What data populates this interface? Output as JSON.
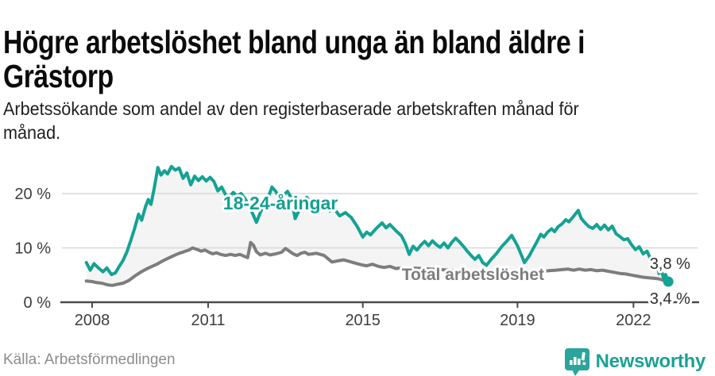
{
  "header": {
    "title_lines": [
      "Högre arbetslöshet bland unga än bland äldre i",
      "Grästorp"
    ],
    "subtitle_lines": [
      "Arbetssökande som andel av den registerbaserade arbetskraften månad för",
      "månad."
    ]
  },
  "footer": {
    "source": "Källa: Arbetsförmedlingen",
    "brand": "Newsworthy",
    "brand_color": "#1ba195"
  },
  "colors": {
    "youth_line": "#14a294",
    "total_line": "#7d7d7d",
    "fill_between": "#f4f4f4",
    "gridline": "#d8d8d8",
    "axis": "#4a4a4a",
    "tick_text": "#3d3d3d",
    "value_text": "#2e2e2e"
  },
  "chart_data": {
    "type": "line",
    "title": "Högre arbetslöshet bland unga än bland äldre i Grästorp",
    "subtitle": "Arbetssökande som andel av den registerbaserade arbetskraften månad för månad.",
    "source": "Källa: Arbetsförmedlingen",
    "x_axis": {
      "ticks": [
        2008,
        2011,
        2015,
        2019,
        2022
      ],
      "labels": [
        "2008",
        "2011",
        "2015",
        "2019",
        "2022"
      ],
      "range": [
        2007.7,
        2023.3
      ]
    },
    "y_axis": {
      "ticks": [
        0,
        10,
        20
      ],
      "labels": [
        "0 %",
        "10 %",
        "20 %"
      ],
      "range": [
        0,
        26
      ],
      "unit": "percent"
    },
    "grid": true,
    "legend_position": "inline-labels",
    "annotations": [
      {
        "text": "18-24-åringar",
        "year": 2012.87,
        "value": 17.1,
        "color": "#12a093",
        "size": 23,
        "weight": 700,
        "anchor": "middle"
      },
      {
        "text": "Total arbetslöshet",
        "year": 2017.85,
        "value": 4.1,
        "color": "#7d7d7d",
        "size": 21,
        "weight": 700,
        "anchor": "middle"
      },
      {
        "text": "3,8 %",
        "year": 2022.42,
        "value": 6.1,
        "color": "#2e2e2e",
        "size": 20,
        "weight": 400,
        "anchor": "start"
      },
      {
        "text": "3,4 %",
        "year": 2022.42,
        "value": -0.3,
        "color": "#2e2e2e",
        "size": 20,
        "weight": 400,
        "anchor": "start"
      }
    ],
    "series": [
      {
        "name": "18-24-åringar",
        "end_value_label": "3,8 %",
        "end_dot": true,
        "points": [
          [
            2007.85,
            7.3
          ],
          [
            2007.95,
            5.9
          ],
          [
            2008.05,
            7.1
          ],
          [
            2008.15,
            6.4
          ],
          [
            2008.28,
            5.6
          ],
          [
            2008.38,
            6.3
          ],
          [
            2008.5,
            5.1
          ],
          [
            2008.6,
            5.4
          ],
          [
            2008.7,
            6.6
          ],
          [
            2008.8,
            7.7
          ],
          [
            2008.9,
            9.3
          ],
          [
            2009.0,
            11.4
          ],
          [
            2009.1,
            13.6
          ],
          [
            2009.2,
            16.2
          ],
          [
            2009.28,
            15.1
          ],
          [
            2009.38,
            17.6
          ],
          [
            2009.45,
            18.9
          ],
          [
            2009.52,
            18.0
          ],
          [
            2009.6,
            20.8
          ],
          [
            2009.7,
            24.8
          ],
          [
            2009.78,
            23.4
          ],
          [
            2009.87,
            24.2
          ],
          [
            2009.95,
            23.6
          ],
          [
            2010.05,
            25.0
          ],
          [
            2010.15,
            24.3
          ],
          [
            2010.25,
            24.7
          ],
          [
            2010.35,
            22.8
          ],
          [
            2010.45,
            23.8
          ],
          [
            2010.55,
            21.6
          ],
          [
            2010.65,
            23.2
          ],
          [
            2010.75,
            22.4
          ],
          [
            2010.85,
            23.1
          ],
          [
            2010.95,
            22.3
          ],
          [
            2011.05,
            23.0
          ],
          [
            2011.15,
            22.2
          ],
          [
            2011.25,
            20.5
          ],
          [
            2011.35,
            21.2
          ],
          [
            2011.45,
            19.8
          ],
          [
            2011.55,
            19.4
          ],
          [
            2011.65,
            20.2
          ],
          [
            2011.75,
            19.5
          ],
          [
            2011.85,
            20.0
          ],
          [
            2011.95,
            19.1
          ],
          [
            2012.05,
            17.9
          ],
          [
            2012.15,
            16.3
          ],
          [
            2012.25,
            14.7
          ],
          [
            2012.35,
            16.5
          ],
          [
            2012.45,
            18.3
          ],
          [
            2012.55,
            19.2
          ],
          [
            2012.65,
            21.2
          ],
          [
            2012.75,
            20.4
          ],
          [
            2012.85,
            19.1
          ],
          [
            2012.95,
            19.7
          ],
          [
            2013.05,
            20.4
          ],
          [
            2013.15,
            19.2
          ],
          [
            2013.25,
            15.4
          ],
          [
            2013.35,
            16.9
          ],
          [
            2013.45,
            18.6
          ],
          [
            2013.55,
            19.3
          ],
          [
            2013.65,
            18.4
          ],
          [
            2013.75,
            17.7
          ],
          [
            2013.85,
            18.3
          ],
          [
            2013.95,
            17.3
          ],
          [
            2014.05,
            17.9
          ],
          [
            2014.15,
            16.8
          ],
          [
            2014.25,
            17.3
          ],
          [
            2014.4,
            15.9
          ],
          [
            2014.55,
            16.5
          ],
          [
            2014.7,
            15.6
          ],
          [
            2014.85,
            14.0
          ],
          [
            2015.0,
            12.0
          ],
          [
            2015.1,
            12.9
          ],
          [
            2015.2,
            12.4
          ],
          [
            2015.35,
            13.6
          ],
          [
            2015.5,
            14.6
          ],
          [
            2015.6,
            13.7
          ],
          [
            2015.7,
            14.3
          ],
          [
            2015.85,
            13.2
          ],
          [
            2016.0,
            12.2
          ],
          [
            2016.1,
            10.8
          ],
          [
            2016.2,
            8.8
          ],
          [
            2016.3,
            10.3
          ],
          [
            2016.4,
            9.6
          ],
          [
            2016.5,
            10.5
          ],
          [
            2016.6,
            11.2
          ],
          [
            2016.7,
            10.4
          ],
          [
            2016.8,
            11.3
          ],
          [
            2016.9,
            10.6
          ],
          [
            2017.0,
            10.1
          ],
          [
            2017.1,
            10.9
          ],
          [
            2017.2,
            10.0
          ],
          [
            2017.3,
            11.0
          ],
          [
            2017.4,
            11.8
          ],
          [
            2017.5,
            11.1
          ],
          [
            2017.6,
            10.3
          ],
          [
            2017.7,
            9.4
          ],
          [
            2017.8,
            8.6
          ],
          [
            2017.9,
            7.9
          ],
          [
            2018.0,
            8.6
          ],
          [
            2018.1,
            7.3
          ],
          [
            2018.2,
            6.8
          ],
          [
            2018.32,
            7.9
          ],
          [
            2018.45,
            8.9
          ],
          [
            2018.6,
            10.3
          ],
          [
            2018.72,
            11.2
          ],
          [
            2018.85,
            12.3
          ],
          [
            2019.0,
            10.4
          ],
          [
            2019.1,
            8.7
          ],
          [
            2019.18,
            7.3
          ],
          [
            2019.3,
            8.5
          ],
          [
            2019.4,
            9.8
          ],
          [
            2019.5,
            11.1
          ],
          [
            2019.6,
            12.5
          ],
          [
            2019.68,
            12.0
          ],
          [
            2019.78,
            12.9
          ],
          [
            2019.88,
            13.5
          ],
          [
            2019.96,
            13.0
          ],
          [
            2020.05,
            13.9
          ],
          [
            2020.15,
            14.4
          ],
          [
            2020.25,
            15.2
          ],
          [
            2020.33,
            14.8
          ],
          [
            2020.45,
            15.8
          ],
          [
            2020.57,
            16.9
          ],
          [
            2020.65,
            15.4
          ],
          [
            2020.75,
            14.6
          ],
          [
            2020.85,
            13.9
          ],
          [
            2020.95,
            13.6
          ],
          [
            2021.05,
            14.3
          ],
          [
            2021.15,
            13.4
          ],
          [
            2021.25,
            14.2
          ],
          [
            2021.35,
            13.3
          ],
          [
            2021.45,
            14.0
          ],
          [
            2021.55,
            12.6
          ],
          [
            2021.65,
            12.1
          ],
          [
            2021.75,
            11.5
          ],
          [
            2021.85,
            11.7
          ],
          [
            2021.95,
            10.6
          ],
          [
            2022.05,
            9.7
          ],
          [
            2022.15,
            10.2
          ],
          [
            2022.25,
            8.9
          ],
          [
            2022.35,
            9.4
          ],
          [
            2022.42,
            8.3
          ],
          [
            2022.48,
            7.5
          ],
          [
            2022.54,
            6.3
          ],
          [
            2022.6,
            7.1
          ],
          [
            2022.66,
            5.3
          ],
          [
            2022.72,
            6.0
          ],
          [
            2022.78,
            4.4
          ],
          [
            2022.83,
            5.1
          ],
          [
            2022.87,
            4.3
          ],
          [
            2022.9,
            3.8
          ]
        ]
      },
      {
        "name": "Total arbetslöshet",
        "end_value_label": "3,4 %",
        "end_dot": false,
        "points": [
          [
            2007.85,
            3.9
          ],
          [
            2008.0,
            3.8
          ],
          [
            2008.12,
            3.6
          ],
          [
            2008.25,
            3.5
          ],
          [
            2008.4,
            3.2
          ],
          [
            2008.52,
            3.1
          ],
          [
            2008.65,
            3.3
          ],
          [
            2008.8,
            3.5
          ],
          [
            2008.95,
            4.0
          ],
          [
            2009.1,
            4.8
          ],
          [
            2009.25,
            5.5
          ],
          [
            2009.4,
            6.1
          ],
          [
            2009.55,
            6.6
          ],
          [
            2009.7,
            7.1
          ],
          [
            2009.85,
            7.7
          ],
          [
            2010.0,
            8.2
          ],
          [
            2010.12,
            8.6
          ],
          [
            2010.25,
            9.0
          ],
          [
            2010.38,
            9.3
          ],
          [
            2010.5,
            9.6
          ],
          [
            2010.6,
            10.0
          ],
          [
            2010.72,
            9.7
          ],
          [
            2010.82,
            9.4
          ],
          [
            2010.92,
            9.6
          ],
          [
            2011.02,
            9.2
          ],
          [
            2011.12,
            8.9
          ],
          [
            2011.22,
            9.1
          ],
          [
            2011.32,
            8.8
          ],
          [
            2011.45,
            8.6
          ],
          [
            2011.58,
            8.8
          ],
          [
            2011.7,
            8.6
          ],
          [
            2011.82,
            8.8
          ],
          [
            2011.92,
            8.5
          ],
          [
            2012.02,
            8.2
          ],
          [
            2012.1,
            11.0
          ],
          [
            2012.17,
            10.5
          ],
          [
            2012.25,
            9.3
          ],
          [
            2012.35,
            8.7
          ],
          [
            2012.48,
            9.0
          ],
          [
            2012.6,
            8.7
          ],
          [
            2012.75,
            8.9
          ],
          [
            2012.9,
            9.2
          ],
          [
            2013.0,
            9.9
          ],
          [
            2013.1,
            9.4
          ],
          [
            2013.2,
            8.9
          ],
          [
            2013.3,
            8.6
          ],
          [
            2013.4,
            9.0
          ],
          [
            2013.5,
            9.2
          ],
          [
            2013.6,
            8.8
          ],
          [
            2013.7,
            8.9
          ],
          [
            2013.8,
            9.0
          ],
          [
            2013.9,
            8.8
          ],
          [
            2014.0,
            8.6
          ],
          [
            2014.1,
            8.0
          ],
          [
            2014.2,
            7.4
          ],
          [
            2014.35,
            7.6
          ],
          [
            2014.5,
            7.8
          ],
          [
            2014.65,
            7.5
          ],
          [
            2014.8,
            7.2
          ],
          [
            2014.95,
            6.9
          ],
          [
            2015.1,
            6.7
          ],
          [
            2015.25,
            7.0
          ],
          [
            2015.4,
            6.6
          ],
          [
            2015.55,
            6.4
          ],
          [
            2015.7,
            6.6
          ],
          [
            2015.85,
            6.2
          ],
          [
            2016.0,
            6.3
          ],
          [
            2016.25,
            6.3
          ],
          [
            2016.5,
            6.2
          ],
          [
            2016.75,
            6.1
          ],
          [
            2017.0,
            6.0
          ],
          [
            2017.25,
            5.9
          ],
          [
            2017.5,
            5.7
          ],
          [
            2017.75,
            5.5
          ],
          [
            2018.0,
            5.4
          ],
          [
            2018.25,
            5.3
          ],
          [
            2018.5,
            5.2
          ],
          [
            2018.75,
            5.2
          ],
          [
            2019.0,
            5.1
          ],
          [
            2019.2,
            5.2
          ],
          [
            2019.4,
            5.4
          ],
          [
            2019.6,
            5.6
          ],
          [
            2019.8,
            5.8
          ],
          [
            2020.0,
            5.9
          ],
          [
            2020.15,
            6.0
          ],
          [
            2020.3,
            6.1
          ],
          [
            2020.45,
            5.9
          ],
          [
            2020.6,
            6.1
          ],
          [
            2020.75,
            5.9
          ],
          [
            2020.9,
            6.0
          ],
          [
            2021.05,
            5.8
          ],
          [
            2021.2,
            5.9
          ],
          [
            2021.35,
            5.7
          ],
          [
            2021.5,
            5.5
          ],
          [
            2021.65,
            5.3
          ],
          [
            2021.8,
            5.2
          ],
          [
            2021.95,
            5.0
          ],
          [
            2022.1,
            4.8
          ],
          [
            2022.25,
            4.6
          ],
          [
            2022.4,
            4.5
          ],
          [
            2022.55,
            4.4
          ],
          [
            2022.65,
            4.3
          ],
          [
            2022.75,
            4.1
          ],
          [
            2022.83,
            3.9
          ],
          [
            2022.9,
            3.4
          ]
        ]
      }
    ]
  }
}
